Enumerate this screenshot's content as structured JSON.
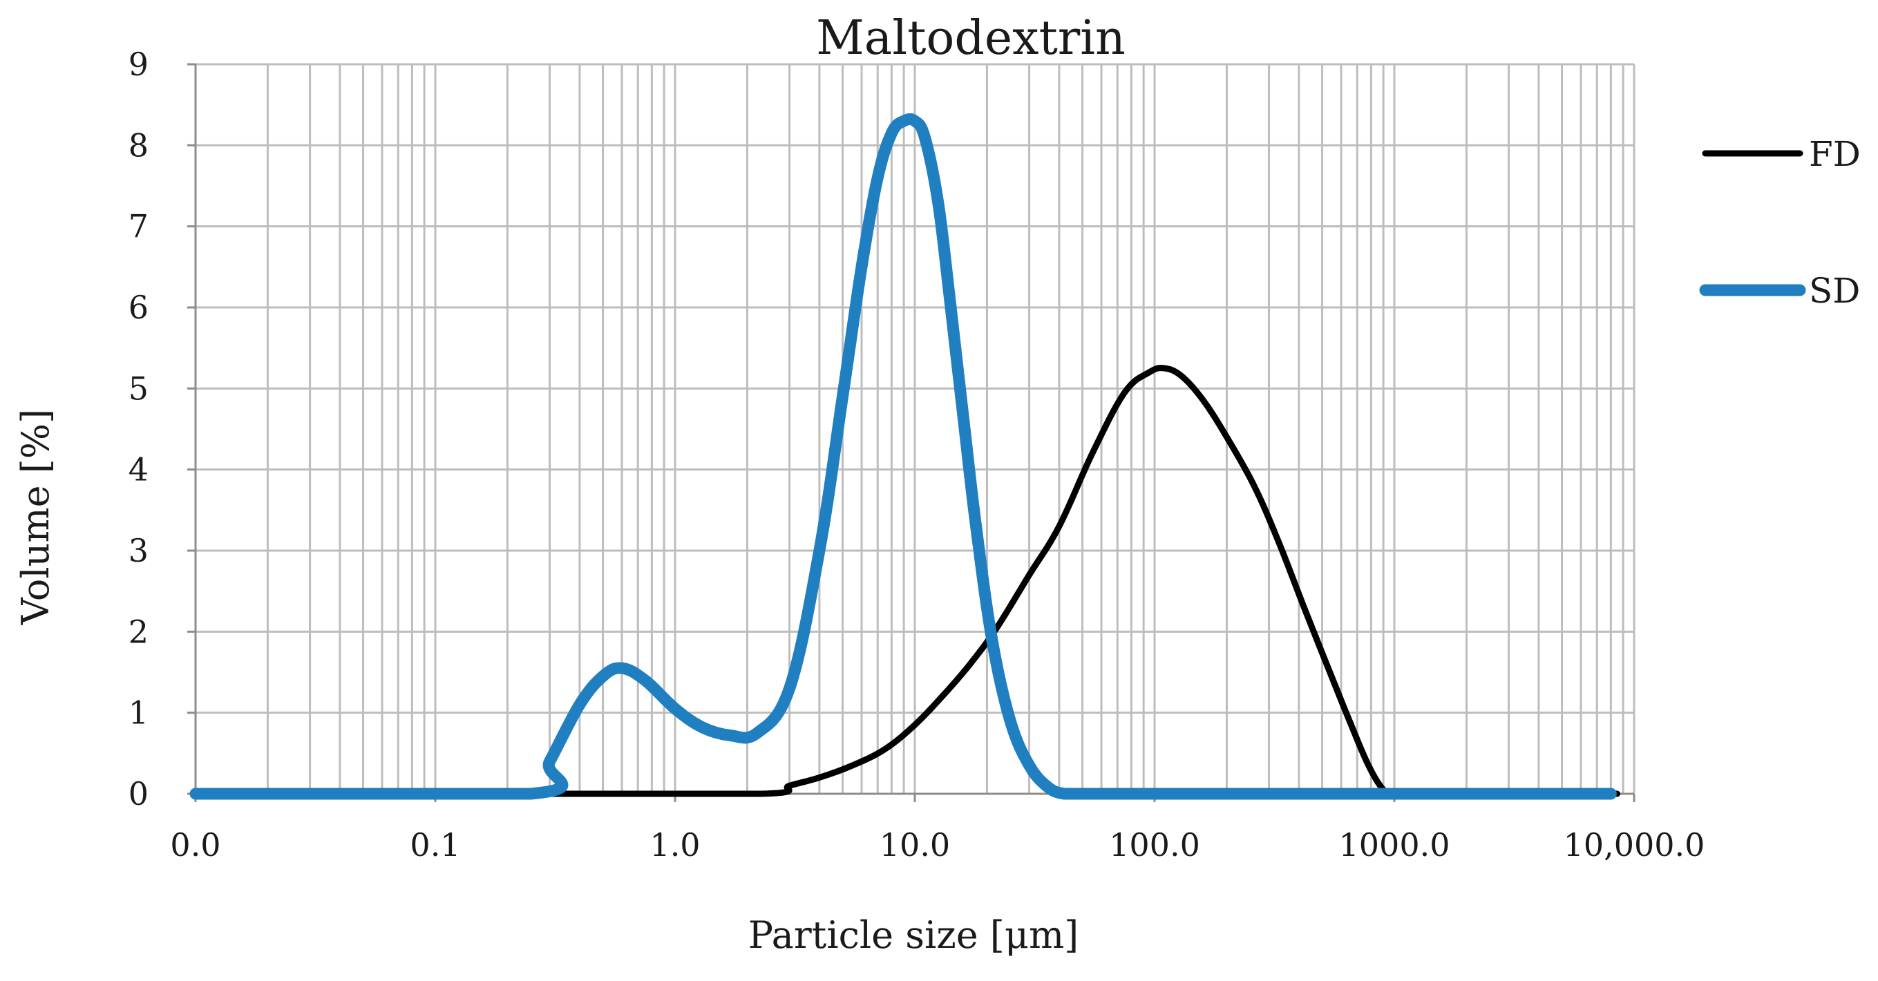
{
  "chart_data": {
    "type": "line",
    "title": "Maltodextrin",
    "xlabel": "Particle size [μm]",
    "ylabel": "Volume [%]",
    "xscale": "log",
    "xlim": [
      0.01,
      10000
    ],
    "ylim": [
      0,
      9
    ],
    "x_tick_values": [
      0.01,
      0.1,
      1,
      10,
      100,
      1000,
      10000
    ],
    "x_tick_labels": [
      "0.0",
      "0.1",
      "1.0",
      "10.0",
      "100.0",
      "1000.0",
      "10,000.0"
    ],
    "y_tick_values": [
      0,
      1,
      2,
      3,
      4,
      5,
      6,
      7,
      8,
      9
    ],
    "y_tick_labels": [
      "0",
      "1",
      "2",
      "3",
      "4",
      "5",
      "6",
      "7",
      "8",
      "9"
    ],
    "grid": true,
    "legend_position": "right",
    "series": [
      {
        "name": "FD",
        "color": "#000000",
        "x": [
          0.01,
          0.25,
          2.3,
          3.0,
          4.0,
          5.5,
          7.5,
          10,
          13,
          17,
          22,
          30,
          40,
          55,
          75,
          95,
          110,
          130,
          160,
          200,
          260,
          330,
          420,
          530,
          650,
          780,
          900,
          1000,
          2000,
          5000,
          8500
        ],
        "y": [
          0,
          0,
          0,
          0.1,
          0.2,
          0.35,
          0.55,
          0.85,
          1.2,
          1.6,
          2.05,
          2.7,
          3.3,
          4.2,
          4.95,
          5.2,
          5.25,
          5.15,
          4.85,
          4.4,
          3.8,
          3.1,
          2.3,
          1.55,
          0.9,
          0.35,
          0.05,
          0,
          0,
          0,
          0
        ]
      },
      {
        "name": "SD",
        "color": "#1f7fc0",
        "x": [
          0.01,
          0.25,
          0.3,
          0.4,
          0.5,
          0.6,
          0.75,
          1.0,
          1.3,
          1.7,
          2.2,
          3.0,
          4.0,
          5.0,
          6.0,
          7.0,
          8.0,
          9.0,
          10,
          11,
          12.5,
          14,
          16,
          18,
          21,
          25,
          30,
          36,
          42,
          50,
          100,
          1000,
          8000
        ],
        "y": [
          0,
          0,
          0.4,
          1.1,
          1.45,
          1.55,
          1.4,
          1.05,
          0.82,
          0.72,
          0.75,
          1.3,
          3.0,
          4.9,
          6.5,
          7.6,
          8.15,
          8.3,
          8.3,
          8.1,
          7.3,
          6.1,
          4.6,
          3.3,
          1.9,
          0.9,
          0.35,
          0.08,
          0,
          0,
          0,
          0,
          0
        ]
      }
    ]
  }
}
